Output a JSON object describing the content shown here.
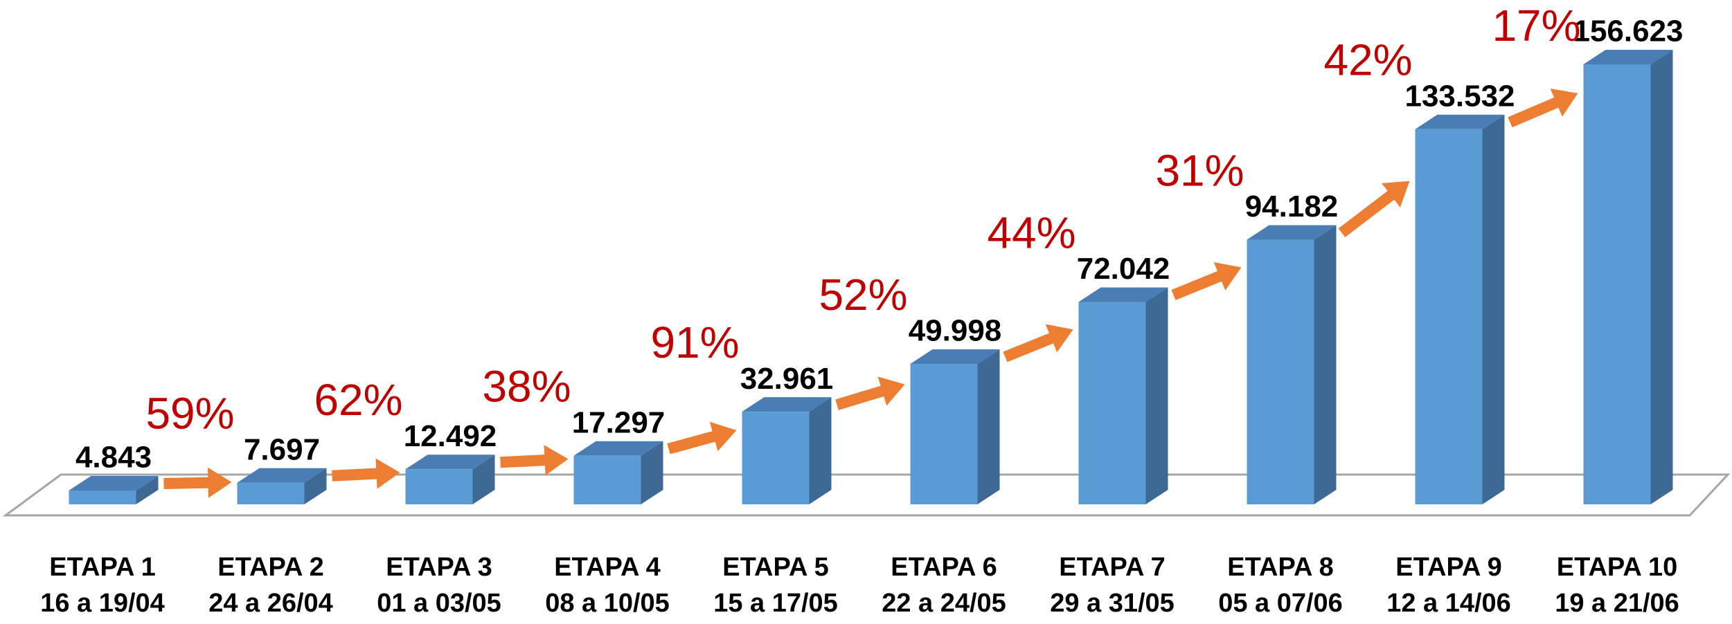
{
  "chart_data": {
    "type": "bar3d",
    "categories": [
      "ETAPA 1",
      "ETAPA 2",
      "ETAPA 3",
      "ETAPA 4",
      "ETAPA 5",
      "ETAPA 6",
      "ETAPA 7",
      "ETAPA 8",
      "ETAPA 9",
      "ETAPA 10"
    ],
    "dates": [
      "16 a 19/04",
      "24 a 26/04",
      "01 a 03/05",
      "08 a 10/05",
      "15 a 17/05",
      "22 a 24/05",
      "29 a 31/05",
      "05 a 07/06",
      "12 a 14/06",
      "19 a 21/06"
    ],
    "values": [
      4843,
      7697,
      12492,
      17297,
      32961,
      49998,
      72042,
      94182,
      133532,
      156623
    ],
    "value_labels": [
      "4.843",
      "7.697",
      "12.492",
      "17.297",
      "32.961",
      "49.998",
      "72.042",
      "94.182",
      "133.532",
      "156.623"
    ],
    "color": "#5b9bd5",
    "annotations": [
      {
        "value": 59,
        "label": "59%"
      },
      {
        "value": 62,
        "label": "62%"
      },
      {
        "value": 38,
        "label": "38%"
      },
      {
        "value": 91,
        "label": "91%"
      },
      {
        "value": 52,
        "label": "52%"
      },
      {
        "value": 44,
        "label": "44%"
      },
      {
        "value": 31,
        "label": "31%"
      },
      {
        "value": 42,
        "label": "42%"
      },
      {
        "value": 17,
        "label": "17%"
      }
    ],
    "annotation_color": "#c00000",
    "arrow_color": "#ed7d31"
  }
}
